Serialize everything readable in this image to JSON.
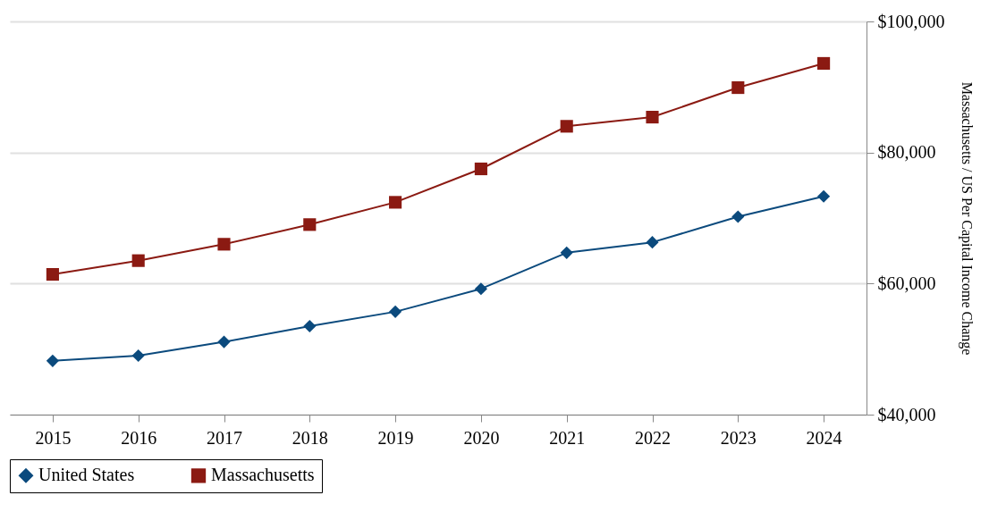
{
  "chart_data": {
    "type": "line",
    "ylabel": "Massachusetts / US Per Capital Income Change",
    "categories": [
      "2015",
      "2016",
      "2017",
      "2018",
      "2019",
      "2020",
      "2021",
      "2022",
      "2023",
      "2024"
    ],
    "series": [
      {
        "name": "United States",
        "color": "#0b4a7d",
        "marker": "diamond",
        "values": [
          48200,
          49000,
          51100,
          53500,
          55700,
          59200,
          64700,
          66300,
          70200,
          73300
        ]
      },
      {
        "name": "Massachusetts",
        "color": "#8b1a12",
        "marker": "square",
        "values": [
          61400,
          63500,
          66000,
          69000,
          72400,
          77500,
          84000,
          85400,
          89900,
          93600
        ]
      }
    ],
    "ylim": [
      40000,
      100000
    ],
    "yticks": [
      {
        "value": 40000,
        "label": "$40,000"
      },
      {
        "value": 60000,
        "label": "$60,000"
      },
      {
        "value": 80000,
        "label": "$80,000"
      },
      {
        "value": 100000,
        "label": "$100,000"
      }
    ],
    "grid": "y",
    "legend": "bottom",
    "line_style": "solid"
  }
}
